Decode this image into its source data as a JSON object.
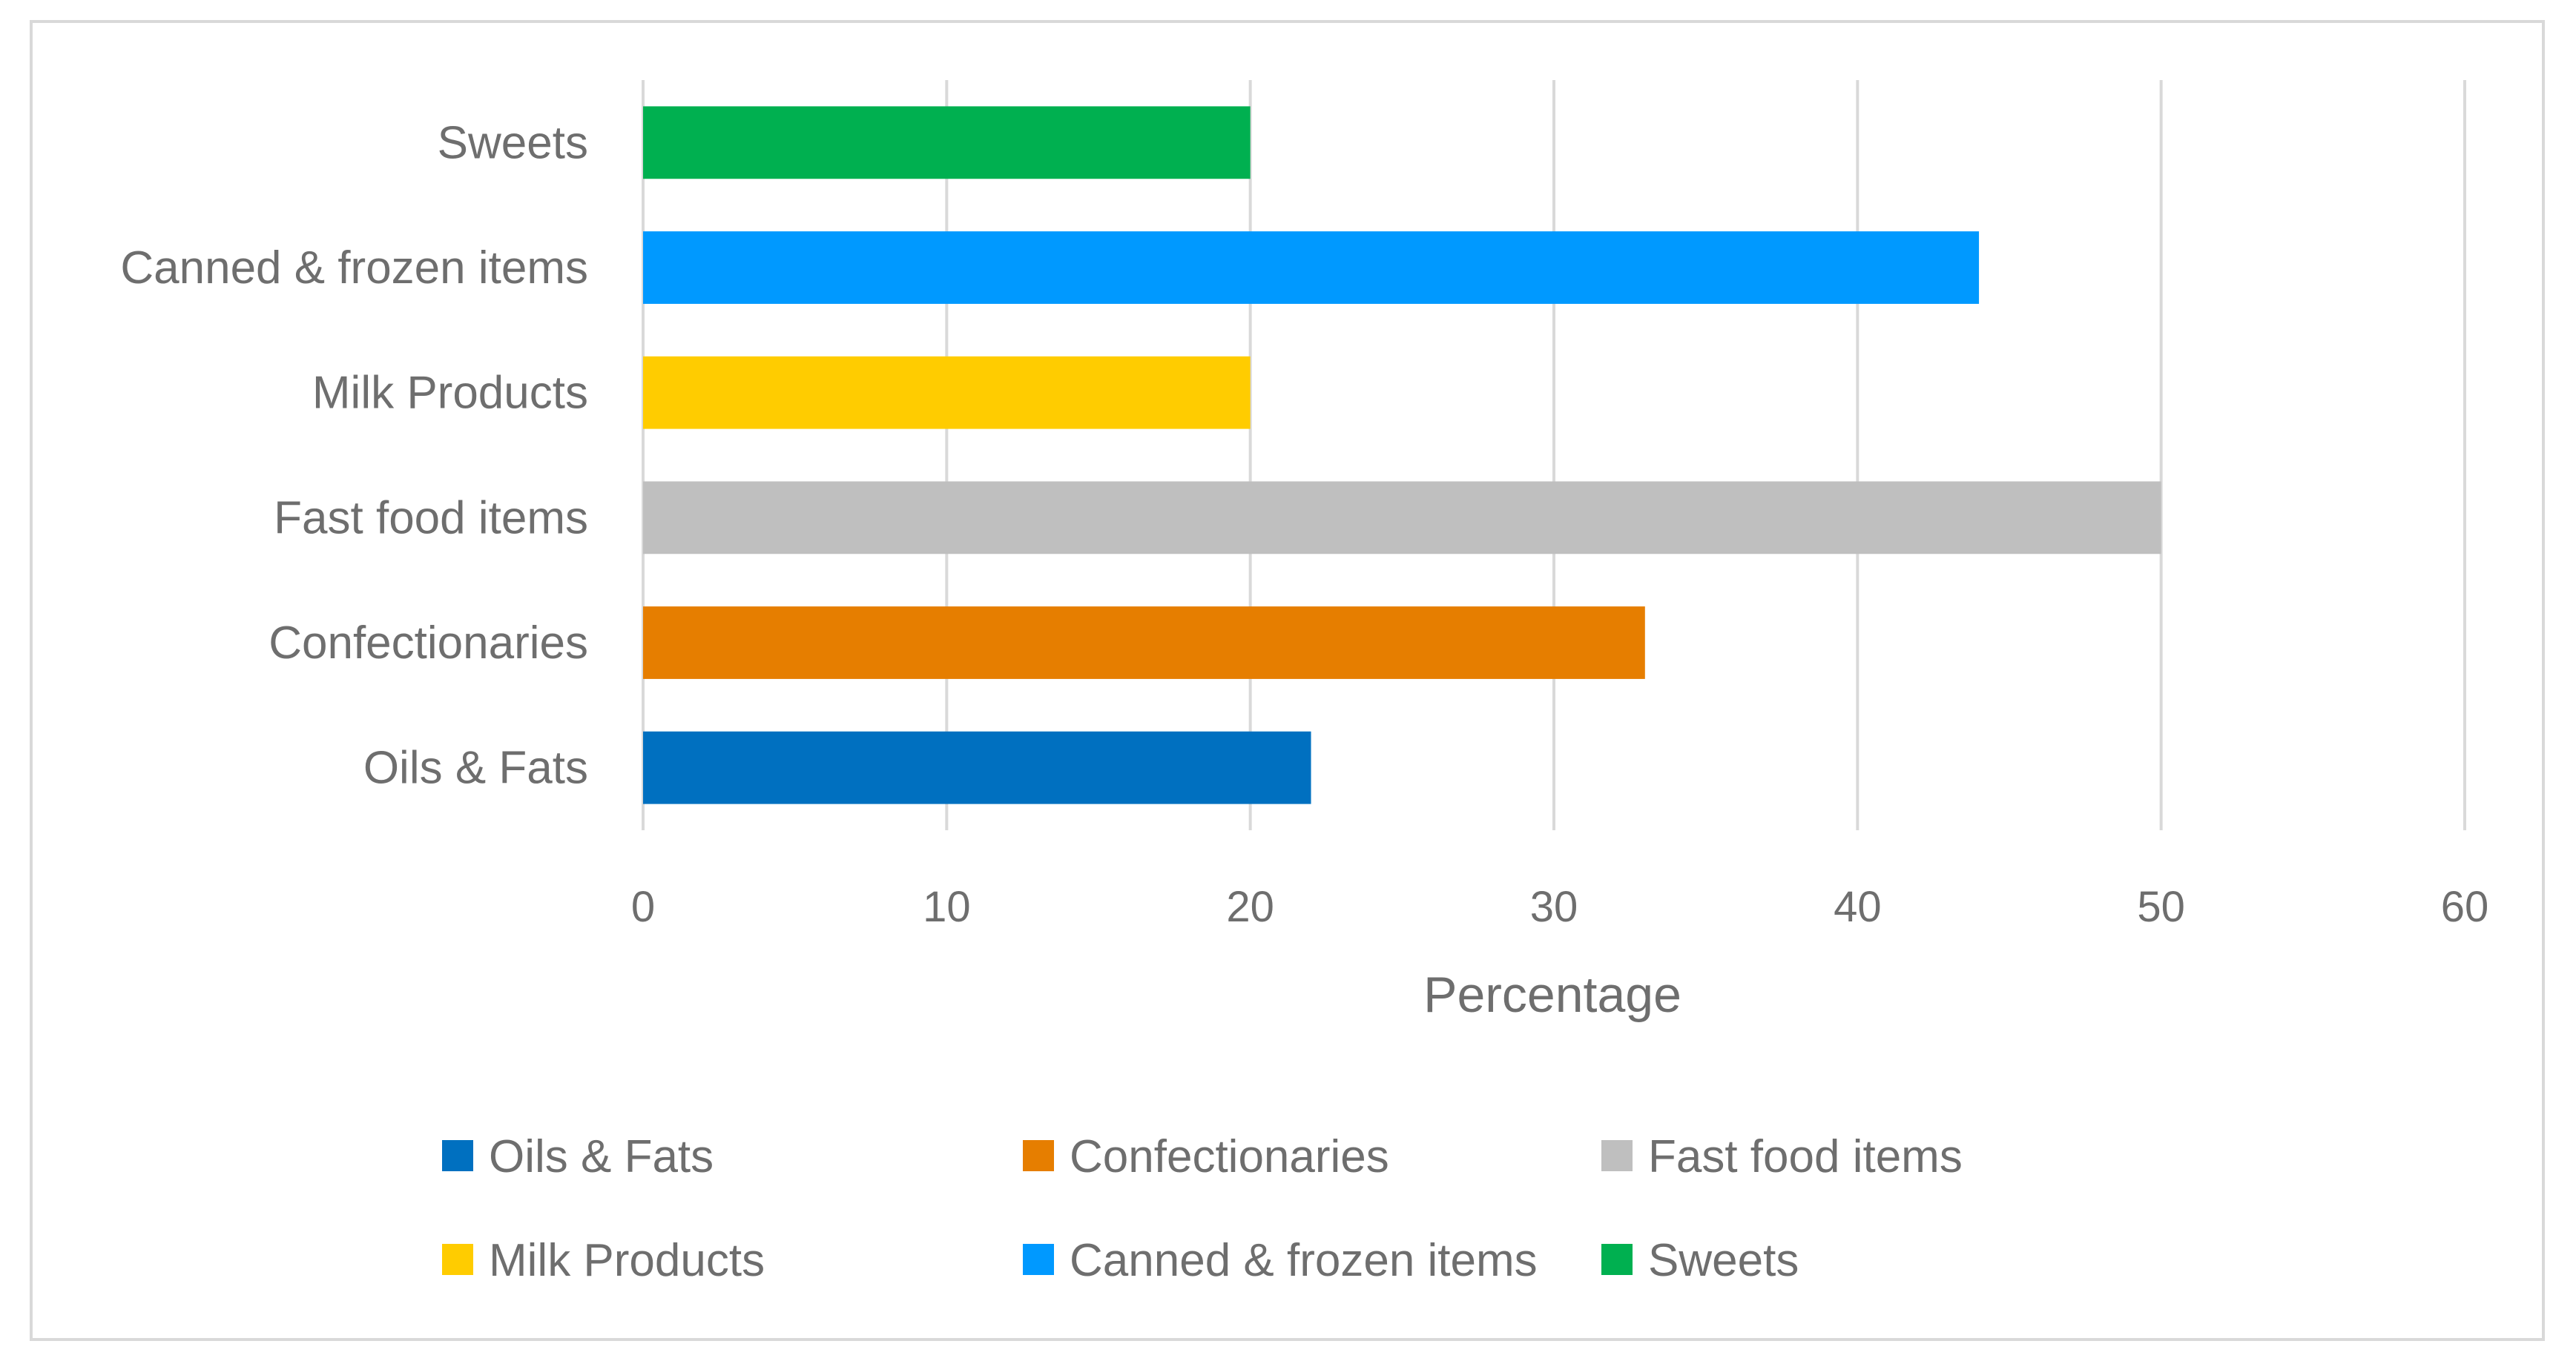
{
  "chart_data": {
    "type": "bar",
    "orientation": "horizontal",
    "categories": [
      "Oils & Fats",
      "Confectionaries",
      "Fast food items",
      "Milk Products",
      "Canned & frozen items",
      "Sweets"
    ],
    "values": [
      22,
      33,
      50,
      20,
      44,
      20
    ],
    "colors": [
      "#0070c0",
      "#e67e00",
      "#bfbfbf",
      "#ffcc00",
      "#0099ff",
      "#00b050"
    ],
    "title": "",
    "xlabel": "Percentage",
    "ylabel": "",
    "xlim": [
      0,
      60
    ],
    "xticks": [
      0,
      10,
      20,
      30,
      40,
      50,
      60
    ],
    "xtick_labels": [
      "0",
      "10",
      "20",
      "30",
      "40",
      "50",
      "60"
    ],
    "grid": true,
    "legend": {
      "position": "bottom",
      "entries": [
        "Oils & Fats",
        "Confectionaries",
        "Fast food items",
        "Milk Products",
        "Canned & frozen items",
        "Sweets"
      ]
    }
  }
}
